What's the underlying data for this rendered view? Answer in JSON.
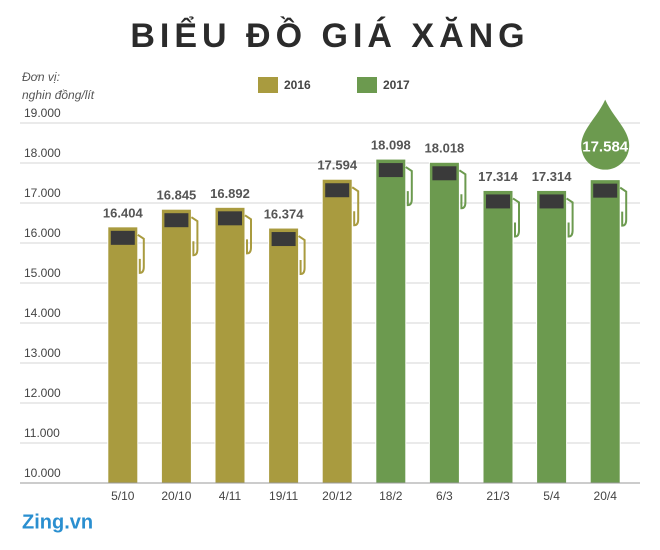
{
  "chart_data": {
    "type": "bar",
    "title": "BIỂU ĐỒ GIÁ XĂNG",
    "ylabel": [
      "Đơn vị:",
      "nghin đồng/lít"
    ],
    "source": "Zing.vn",
    "categories": [
      "5/10",
      "20/10",
      "4/11",
      "19/11",
      "20/12",
      "18/2",
      "6/3",
      "21/3",
      "5/4",
      "20/4"
    ],
    "series": [
      {
        "name": "2016",
        "color": "#a99b3f",
        "values": [
          16404,
          16845,
          16892,
          16374,
          17594,
          null,
          null,
          null,
          null,
          null
        ],
        "value_labels": [
          "16.404",
          "16.845",
          "16.892",
          "16.374",
          "17.594",
          null,
          null,
          null,
          null,
          null
        ]
      },
      {
        "name": "2017",
        "color": "#6c9a4f",
        "values": [
          null,
          null,
          null,
          null,
          null,
          18098,
          18018,
          17314,
          17314,
          17584
        ],
        "value_labels": [
          null,
          null,
          null,
          null,
          null,
          "18.098",
          "18.018",
          "17.314",
          "17.314",
          "17.584"
        ]
      }
    ],
    "ylim": [
      10000,
      19000
    ],
    "yticks": [
      {
        "value": 10000,
        "label": "10.000"
      },
      {
        "value": 11000,
        "label": "11.000"
      },
      {
        "value": 12000,
        "label": "12.000"
      },
      {
        "value": 13000,
        "label": "13.000"
      },
      {
        "value": 14000,
        "label": "14.000"
      },
      {
        "value": 15000,
        "label": "15.000"
      },
      {
        "value": 16000,
        "label": "16.000"
      },
      {
        "value": 17000,
        "label": "17.000"
      },
      {
        "value": 18000,
        "label": "18.000"
      },
      {
        "value": 19000,
        "label": "19.000"
      }
    ],
    "grid": true
  }
}
